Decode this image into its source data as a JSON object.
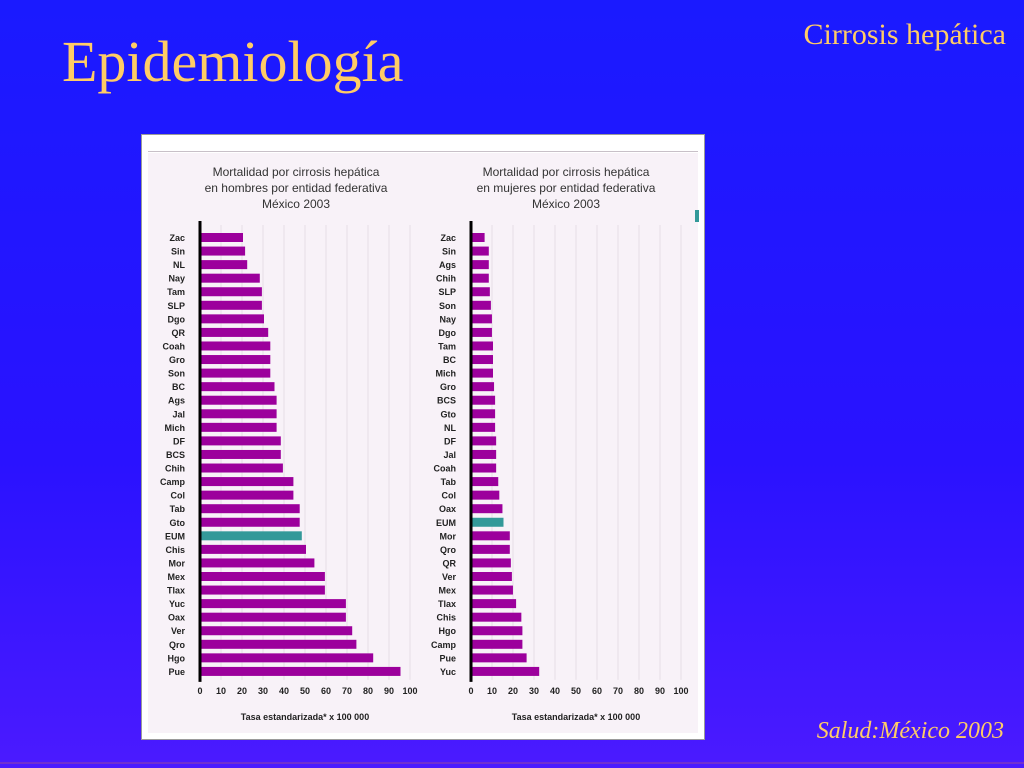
{
  "slide": {
    "title": "Epidemiología",
    "corner_title": "Cirrosis hepática",
    "source": "Salud:México 2003"
  },
  "colors": {
    "bar": "#9c009c",
    "highlight": "#339999",
    "title_text": "#ffcc66"
  },
  "chart_data": [
    {
      "type": "bar",
      "orientation": "horizontal",
      "title_lines": [
        "Mortalidad por cirrosis hepática",
        "en hombres por entidad federativa",
        "México 2003"
      ],
      "xlabel": "Tasa estandarizada* x 100 000",
      "xlim": [
        0,
        100
      ],
      "xticks": [
        0,
        10,
        20,
        30,
        40,
        50,
        60,
        70,
        80,
        90,
        100
      ],
      "highlight": "EUM",
      "categories": [
        "Zac",
        "Sin",
        "NL",
        "Nay",
        "Tam",
        "SLP",
        "Dgo",
        "QR",
        "Coah",
        "Gro",
        "Son",
        "BC",
        "Ags",
        "Jal",
        "Mich",
        "DF",
        "BCS",
        "Chih",
        "Camp",
        "Col",
        "Tab",
        "Gto",
        "EUM",
        "Chis",
        "Mor",
        "Mex",
        "Tlax",
        "Yuc",
        "Oax",
        "Ver",
        "Qro",
        "Hgo",
        "Pue"
      ],
      "values": [
        20,
        21,
        22,
        28,
        29,
        29,
        30,
        32,
        33,
        33,
        33,
        35,
        36,
        36,
        36,
        38,
        38,
        39,
        44,
        44,
        47,
        47,
        48,
        50,
        54,
        59,
        59,
        69,
        69,
        72,
        74,
        82,
        95
      ]
    },
    {
      "type": "bar",
      "orientation": "horizontal",
      "title_lines": [
        "Mortalidad por cirrosis hepática",
        "en mujeres por entidad federativa",
        "México 2003"
      ],
      "xlabel": "Tasa estandarizada* x 100 000",
      "xlim": [
        0,
        100
      ],
      "xticks": [
        0,
        10,
        20,
        30,
        40,
        50,
        60,
        70,
        80,
        90,
        100
      ],
      "highlight": "EUM",
      "categories": [
        "Zac",
        "Sin",
        "Ags",
        "Chih",
        "SLP",
        "Son",
        "Nay",
        "Dgo",
        "Tam",
        "BC",
        "Mich",
        "Gro",
        "BCS",
        "Gto",
        "NL",
        "DF",
        "Jal",
        "Coah",
        "Tab",
        "Col",
        "Oax",
        "EUM",
        "Mor",
        "Qro",
        "QR",
        "Ver",
        "Mex",
        "Tlax",
        "Chis",
        "Hgo",
        "Camp",
        "Pue",
        "Yuc"
      ],
      "values": [
        6,
        8,
        8,
        8,
        8.5,
        9,
        9.5,
        9.5,
        10,
        10,
        10,
        10.5,
        11,
        11,
        11,
        11.5,
        11.5,
        11.5,
        12.5,
        13,
        14.5,
        15,
        18,
        18,
        18.5,
        19,
        19.5,
        21,
        23.5,
        24,
        24,
        26,
        32
      ]
    }
  ]
}
